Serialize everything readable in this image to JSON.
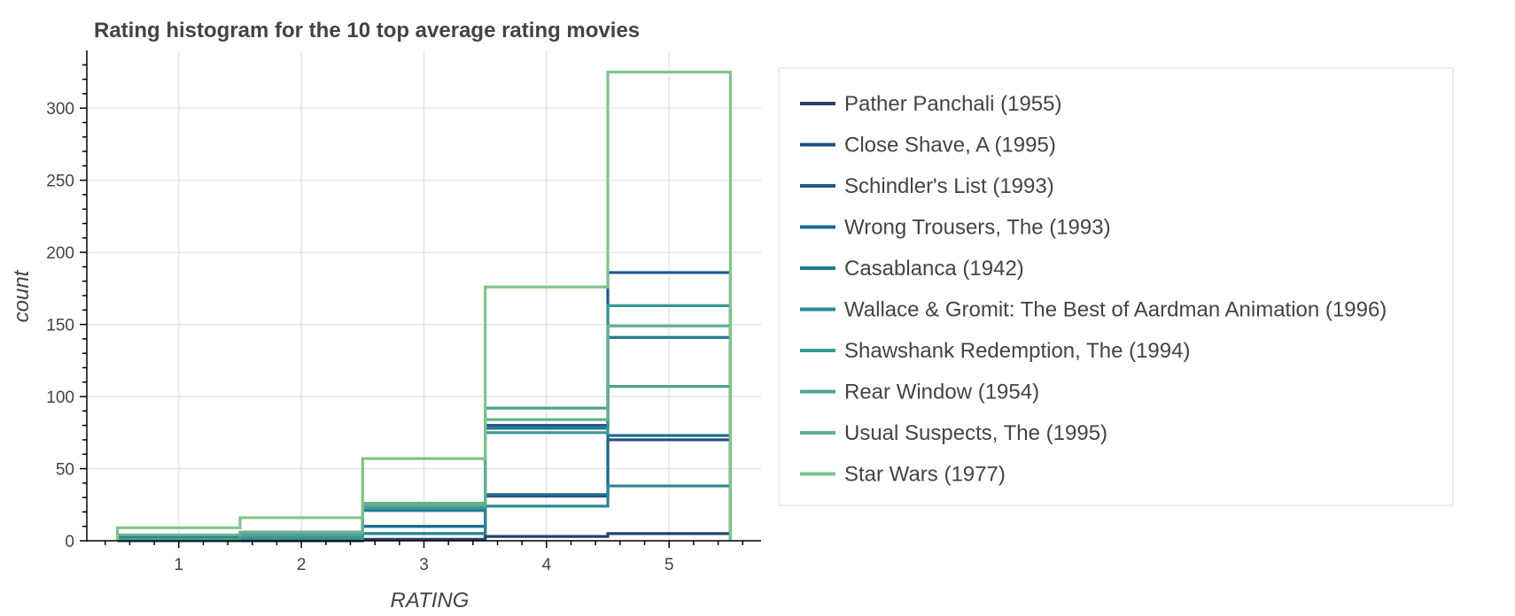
{
  "chart_data": {
    "type": "step",
    "title": "Rating histogram for the 10 top average rating movies",
    "xlabel": "RATING",
    "ylabel": "count",
    "xlim": [
      0.25,
      5.75
    ],
    "ylim": [
      0,
      340
    ],
    "xticks": [
      1,
      2,
      3,
      4,
      5
    ],
    "yticks": [
      0,
      50,
      100,
      150,
      200,
      250,
      300
    ],
    "grid": true,
    "legend_placement": "right",
    "bin_edges": [
      0.5,
      1.5,
      2.5,
      3.5,
      4.5,
      5.5
    ],
    "categories": [
      1,
      2,
      3,
      4,
      5
    ],
    "series": [
      {
        "name": "Pather Panchali (1955)",
        "color": "#27406b",
        "values": [
          0,
          0,
          1,
          3,
          5
        ]
      },
      {
        "name": "Close Shave, A (1995)",
        "color": "#244d80",
        "values": [
          1,
          1,
          5,
          31,
          70
        ]
      },
      {
        "name": "Schindler's List (1993)",
        "color": "#20588b",
        "values": [
          3,
          4,
          10,
          80,
          186
        ]
      },
      {
        "name": "Wrong Trousers, The (1993)",
        "color": "#1e6b8e",
        "values": [
          1,
          2,
          10,
          32,
          73
        ]
      },
      {
        "name": "Casablanca (1942)",
        "color": "#207a8e",
        "values": [
          2,
          3,
          21,
          78,
          141
        ]
      },
      {
        "name": "Wallace & Gromit: The Best of Aardman Animation (1996)",
        "color": "#2a8792",
        "values": [
          0,
          1,
          5,
          24,
          38
        ]
      },
      {
        "name": "Shawshank Redemption, The (1994)",
        "color": "#3a9993",
        "values": [
          1,
          2,
          23,
          75,
          163
        ]
      },
      {
        "name": "Rear Window (1954)",
        "color": "#4ea38f",
        "values": [
          1,
          4,
          24,
          92,
          107
        ]
      },
      {
        "name": "Usual Suspects, The (1995)",
        "color": "#63b18d",
        "values": [
          4,
          6,
          26,
          84,
          149
        ]
      },
      {
        "name": "Star Wars (1977)",
        "color": "#80c48c",
        "values": [
          9,
          16,
          57,
          176,
          325
        ]
      }
    ]
  }
}
